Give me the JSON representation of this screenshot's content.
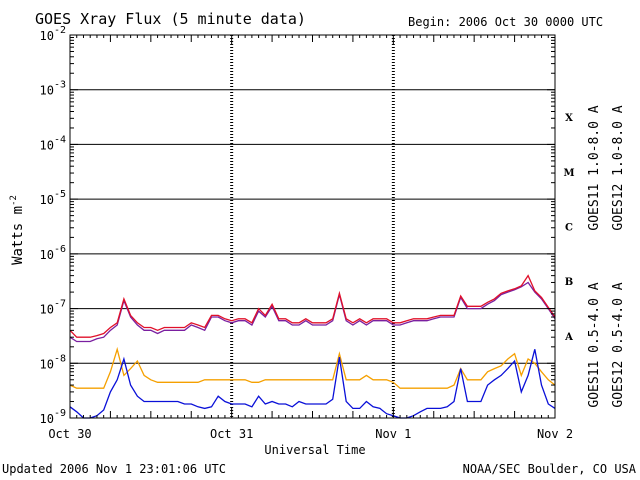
{
  "header": {
    "title": "GOES Xray Flux (5 minute data)",
    "begin": "Begin:  2006 Oct 30 0000 UTC"
  },
  "footer": {
    "updated": "Updated 2006 Nov  1 23:01:06 UTC",
    "credit": "NOAA/SEC Boulder, CO USA"
  },
  "chart_data": {
    "type": "line",
    "title": "GOES Xray Flux (5 minute data)",
    "xlabel": "Universal Time",
    "ylabel": "Watts m",
    "ylabel_exp": "-2",
    "yscale": "log",
    "ylim": [
      1e-09,
      0.01
    ],
    "xlim": [
      0,
      72
    ],
    "x_unit": "hours since 2006 Oct 30 0000 UTC",
    "x_ticks": [
      {
        "x": 0,
        "label": "Oct 30"
      },
      {
        "x": 24,
        "label": "Oct 31"
      },
      {
        "x": 48,
        "label": "Nov 1"
      },
      {
        "x": 72,
        "label": "Nov 2"
      }
    ],
    "y_tick_exponents": [
      -9,
      -8,
      -7,
      -6,
      -5,
      -4,
      -3,
      -2
    ],
    "flare_classes": [
      {
        "label": "A",
        "exp": -8
      },
      {
        "label": "B",
        "exp": -7
      },
      {
        "label": "C",
        "exp": -6
      },
      {
        "label": "M",
        "exp": -5
      },
      {
        "label": "X",
        "exp": -4
      }
    ],
    "grid": "horizontal lines at each decade from 1e-8 to 1e-3; dashed vertical day separators",
    "series": [
      {
        "name": "GOES11 1.0-8.0 A",
        "color": "#7a1fa0",
        "x": [
          0,
          1,
          2,
          3,
          4,
          5,
          6,
          7,
          8,
          9,
          10,
          11,
          12,
          13,
          14,
          15,
          16,
          17,
          18,
          19,
          20,
          21,
          22,
          23,
          24,
          25,
          26,
          27,
          28,
          29,
          30,
          31,
          32,
          33,
          34,
          35,
          36,
          37,
          38,
          39,
          40,
          41,
          42,
          43,
          44,
          45,
          46,
          47,
          48,
          49,
          50,
          51,
          52,
          53,
          54,
          55,
          56,
          57,
          58,
          59,
          60,
          61,
          62,
          63,
          64,
          65,
          66,
          67,
          68,
          69,
          70,
          71,
          72
        ],
        "y": [
          3e-08,
          2.5e-08,
          2.5e-08,
          2.5e-08,
          2.8e-08,
          3e-08,
          4e-08,
          5e-08,
          1.4e-07,
          7e-08,
          5e-08,
          4e-08,
          4e-08,
          3.5e-08,
          4e-08,
          4e-08,
          4e-08,
          4e-08,
          5e-08,
          4.5e-08,
          4e-08,
          7e-08,
          7e-08,
          6e-08,
          5.5e-08,
          6e-08,
          6e-08,
          5e-08,
          9e-08,
          7e-08,
          1.1e-07,
          6e-08,
          6e-08,
          5e-08,
          5e-08,
          6e-08,
          5e-08,
          5e-08,
          5e-08,
          6e-08,
          1.8e-07,
          6e-08,
          5e-08,
          6e-08,
          5e-08,
          6e-08,
          6e-08,
          6e-08,
          5e-08,
          5e-08,
          5.5e-08,
          6e-08,
          6e-08,
          6e-08,
          6.5e-08,
          7e-08,
          7e-08,
          7e-08,
          1.6e-07,
          1e-07,
          1e-07,
          1e-07,
          1.2e-07,
          1.4e-07,
          1.8e-07,
          2e-07,
          2.2e-07,
          2.5e-07,
          3e-07,
          2e-07,
          1.5e-07,
          1e-07,
          6.5e-08
        ]
      },
      {
        "name": "GOES12 1.0-8.0 A",
        "color": "#e0102a",
        "x": [
          0,
          1,
          2,
          3,
          4,
          5,
          6,
          7,
          8,
          9,
          10,
          11,
          12,
          13,
          14,
          15,
          16,
          17,
          18,
          19,
          20,
          21,
          22,
          23,
          24,
          25,
          26,
          27,
          28,
          29,
          30,
          31,
          32,
          33,
          34,
          35,
          36,
          37,
          38,
          39,
          40,
          41,
          42,
          43,
          44,
          45,
          46,
          47,
          48,
          49,
          50,
          51,
          52,
          53,
          54,
          55,
          56,
          57,
          58,
          59,
          60,
          61,
          62,
          63,
          64,
          65,
          66,
          67,
          68,
          69,
          70,
          71,
          72
        ],
        "y": [
          4e-08,
          3e-08,
          3e-08,
          3e-08,
          3.2e-08,
          3.5e-08,
          4.5e-08,
          5.5e-08,
          1.5e-07,
          7.5e-08,
          5.5e-08,
          4.5e-08,
          4.5e-08,
          4e-08,
          4.5e-08,
          4.5e-08,
          4.5e-08,
          4.5e-08,
          5.5e-08,
          5e-08,
          4.5e-08,
          7.5e-08,
          7.5e-08,
          6.5e-08,
          6e-08,
          6.5e-08,
          6.5e-08,
          5.5e-08,
          1e-07,
          7.5e-08,
          1.2e-07,
          6.5e-08,
          6.5e-08,
          5.5e-08,
          5.5e-08,
          6.5e-08,
          5.5e-08,
          5.5e-08,
          5.5e-08,
          6.5e-08,
          1.9e-07,
          6.5e-08,
          5.5e-08,
          6.5e-08,
          5.5e-08,
          6.5e-08,
          6.5e-08,
          6.5e-08,
          5.5e-08,
          5.5e-08,
          6e-08,
          6.5e-08,
          6.5e-08,
          6.5e-08,
          7e-08,
          7.5e-08,
          7.5e-08,
          7.5e-08,
          1.7e-07,
          1.1e-07,
          1.1e-07,
          1.1e-07,
          1.3e-07,
          1.5e-07,
          1.9e-07,
          2.1e-07,
          2.3e-07,
          2.6e-07,
          4e-07,
          2.1e-07,
          1.6e-07,
          1.05e-07,
          7e-08
        ]
      },
      {
        "name": "GOES11 0.5-4.0 A",
        "color": "#f5a000",
        "x": [
          0,
          1,
          2,
          3,
          4,
          5,
          6,
          7,
          8,
          9,
          10,
          11,
          12,
          13,
          14,
          15,
          16,
          17,
          18,
          19,
          20,
          21,
          22,
          23,
          24,
          25,
          26,
          27,
          28,
          29,
          30,
          31,
          32,
          33,
          34,
          35,
          36,
          37,
          38,
          39,
          40,
          41,
          42,
          43,
          44,
          45,
          46,
          47,
          48,
          49,
          50,
          51,
          52,
          53,
          54,
          55,
          56,
          57,
          58,
          59,
          60,
          61,
          62,
          63,
          64,
          65,
          66,
          67,
          68,
          69,
          70,
          71,
          72
        ],
        "y": [
          4e-09,
          3.5e-09,
          3.5e-09,
          3.5e-09,
          3.5e-09,
          3.5e-09,
          7e-09,
          1.8e-08,
          6e-09,
          8e-09,
          1.1e-08,
          6e-09,
          5e-09,
          4.5e-09,
          4.5e-09,
          4.5e-09,
          4.5e-09,
          4.5e-09,
          4.5e-09,
          4.5e-09,
          5e-09,
          5e-09,
          5e-09,
          5e-09,
          5e-09,
          5e-09,
          5e-09,
          4.5e-09,
          4.5e-09,
          5e-09,
          5e-09,
          5e-09,
          5e-09,
          5e-09,
          5e-09,
          5e-09,
          5e-09,
          5e-09,
          5e-09,
          5e-09,
          1.5e-08,
          5e-09,
          5e-09,
          5e-09,
          6e-09,
          5e-09,
          5e-09,
          5e-09,
          4.5e-09,
          3.5e-09,
          3.5e-09,
          3.5e-09,
          3.5e-09,
          3.5e-09,
          3.5e-09,
          3.5e-09,
          3.5e-09,
          4e-09,
          8e-09,
          5e-09,
          5e-09,
          5e-09,
          7e-09,
          8e-09,
          9e-09,
          1.2e-08,
          1.5e-08,
          6e-09,
          1.2e-08,
          1e-08,
          7e-09,
          5e-09,
          4e-09
        ]
      },
      {
        "name": "GOES12 0.5-4.0 A",
        "color": "#0a10d8",
        "x": [
          0,
          1,
          2,
          3,
          4,
          5,
          6,
          7,
          8,
          9,
          10,
          11,
          12,
          13,
          14,
          15,
          16,
          17,
          18,
          19,
          20,
          21,
          22,
          23,
          24,
          25,
          26,
          27,
          28,
          29,
          30,
          31,
          32,
          33,
          34,
          35,
          36,
          37,
          38,
          39,
          40,
          41,
          42,
          43,
          44,
          45,
          46,
          47,
          48,
          49,
          50,
          51,
          52,
          53,
          54,
          55,
          56,
          57,
          58,
          59,
          60,
          61,
          62,
          63,
          64,
          65,
          66,
          67,
          68,
          69,
          70,
          71,
          72
        ],
        "y": [
          1.6e-09,
          1.3e-09,
          1e-09,
          1e-09,
          1.1e-09,
          1.4e-09,
          3e-09,
          5e-09,
          1.2e-08,
          4e-09,
          2.5e-09,
          2e-09,
          2e-09,
          2e-09,
          2e-09,
          2e-09,
          2e-09,
          1.8e-09,
          1.8e-09,
          1.6e-09,
          1.5e-09,
          1.6e-09,
          2.5e-09,
          2e-09,
          1.8e-09,
          1.8e-09,
          1.8e-09,
          1.6e-09,
          2.5e-09,
          1.8e-09,
          2e-09,
          1.8e-09,
          1.8e-09,
          1.6e-09,
          2e-09,
          1.8e-09,
          1.8e-09,
          1.8e-09,
          1.8e-09,
          2.2e-09,
          1.3e-08,
          2e-09,
          1.5e-09,
          1.5e-09,
          2e-09,
          1.6e-09,
          1.5e-09,
          1.2e-09,
          1.1e-09,
          1e-09,
          1e-09,
          1.1e-09,
          1.3e-09,
          1.5e-09,
          1.5e-09,
          1.5e-09,
          1.6e-09,
          2e-09,
          8e-09,
          2e-09,
          2e-09,
          2e-09,
          4e-09,
          5e-09,
          6e-09,
          8e-09,
          1.1e-08,
          3e-09,
          6e-09,
          1.8e-08,
          4e-09,
          1.8e-09,
          1.5e-09
        ]
      }
    ],
    "legend_placement": "right, rotated vertical labels"
  }
}
